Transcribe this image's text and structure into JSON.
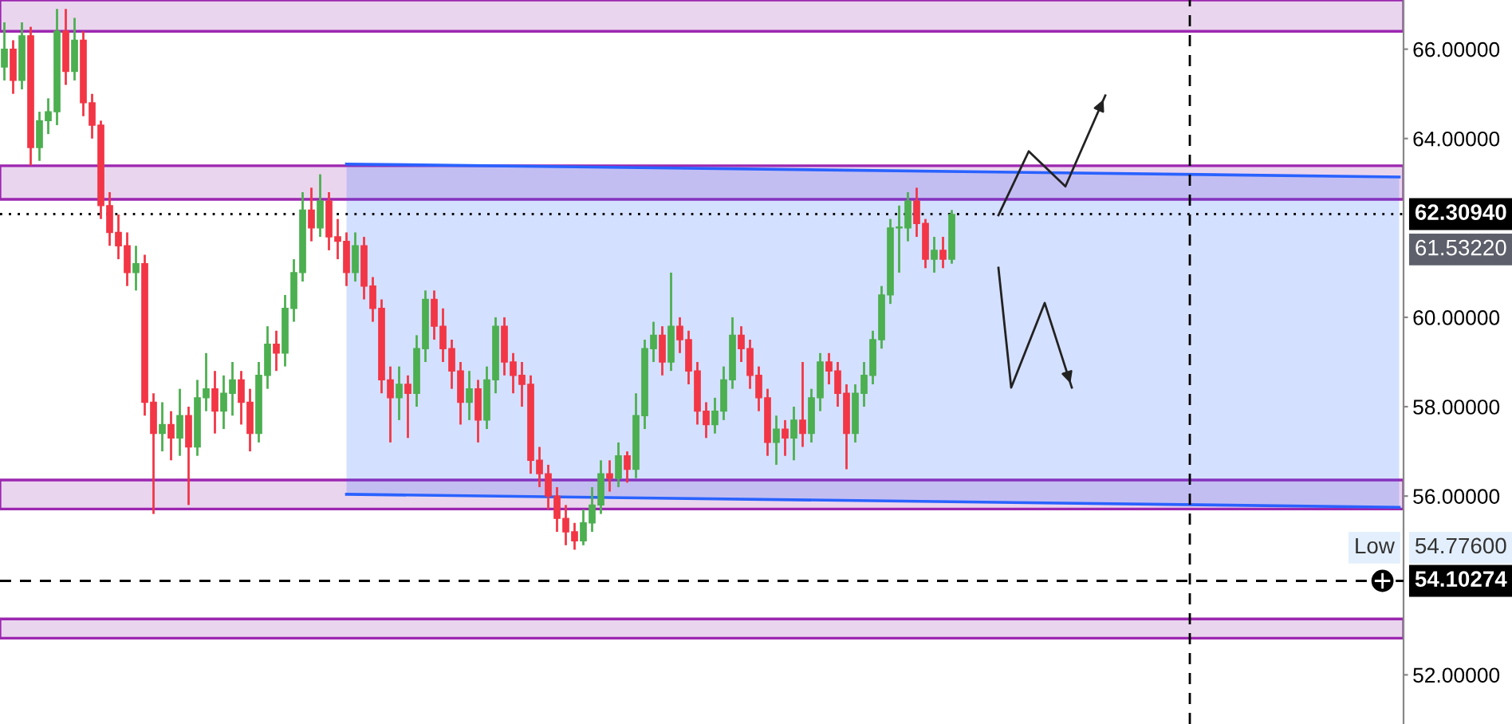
{
  "chart_data": {
    "type": "candlestick",
    "categories": [
      null,
      null,
      null,
      null,
      null,
      null,
      null,
      null,
      null,
      null,
      null,
      null,
      null,
      null,
      null,
      null,
      null,
      null,
      null,
      null,
      null,
      null,
      null,
      null,
      null,
      null,
      null,
      null,
      null,
      null,
      null,
      null,
      null,
      null,
      null,
      null,
      null,
      null,
      null,
      null,
      null,
      null,
      null,
      null,
      null,
      null,
      null,
      null,
      null,
      null,
      null,
      null,
      null,
      null,
      null,
      null,
      null,
      null,
      null,
      null,
      null,
      null,
      null,
      null,
      null,
      null,
      null,
      null,
      null,
      null,
      null,
      null,
      null,
      null,
      null,
      null,
      null,
      null,
      null,
      null,
      null,
      null,
      null,
      null,
      null,
      null,
      null,
      null,
      null,
      null,
      null,
      null,
      null,
      null,
      null,
      null,
      null,
      null,
      null,
      null,
      null,
      null,
      null,
      null,
      null,
      null,
      null,
      null,
      null,
      null,
      null,
      null,
      null,
      null,
      null,
      null,
      null,
      null,
      null,
      null,
      null,
      null,
      null,
      null,
      null,
      null,
      null,
      null,
      null,
      null,
      null,
      null,
      null,
      null,
      null,
      null,
      null,
      null,
      null,
      null,
      null,
      null,
      null,
      null,
      null,
      null,
      null,
      null,
      null,
      null,
      null,
      null,
      null,
      null,
      null,
      null,
      null,
      null,
      null,
      null
    ],
    "ohlc": [
      [
        65.6,
        66.6,
        65.3,
        66.0
      ],
      [
        66.0,
        66.2,
        65.0,
        65.3
      ],
      [
        65.3,
        66.6,
        65.1,
        66.3
      ],
      [
        66.3,
        66.5,
        63.4,
        63.8
      ],
      [
        63.8,
        64.6,
        63.5,
        64.4
      ],
      [
        64.4,
        64.9,
        64.1,
        64.6
      ],
      [
        64.6,
        66.9,
        64.3,
        66.4
      ],
      [
        66.4,
        66.9,
        65.2,
        65.5
      ],
      [
        65.5,
        66.7,
        65.3,
        66.2
      ],
      [
        66.2,
        66.4,
        64.5,
        64.8
      ],
      [
        64.8,
        65.0,
        64.0,
        64.3
      ],
      [
        64.3,
        64.4,
        62.2,
        62.5
      ],
      [
        62.5,
        62.8,
        61.6,
        61.9
      ],
      [
        61.9,
        62.3,
        61.3,
        61.6
      ],
      [
        61.6,
        61.9,
        60.7,
        61.0
      ],
      [
        61.0,
        61.6,
        60.6,
        61.2
      ],
      [
        61.2,
        61.4,
        57.8,
        58.1
      ],
      [
        58.1,
        58.3,
        55.6,
        57.4
      ],
      [
        57.4,
        58.1,
        57.0,
        57.6
      ],
      [
        57.6,
        57.9,
        56.8,
        57.3
      ],
      [
        57.3,
        58.4,
        56.9,
        57.8
      ],
      [
        57.8,
        58.0,
        55.8,
        57.1
      ],
      [
        57.1,
        58.6,
        56.9,
        58.2
      ],
      [
        58.2,
        59.2,
        57.9,
        58.4
      ],
      [
        58.4,
        58.8,
        57.4,
        57.9
      ],
      [
        57.9,
        58.7,
        57.5,
        58.3
      ],
      [
        58.3,
        59.0,
        57.8,
        58.6
      ],
      [
        58.6,
        58.8,
        57.6,
        58.1
      ],
      [
        58.1,
        58.4,
        57.0,
        57.4
      ],
      [
        57.4,
        59.0,
        57.2,
        58.7
      ],
      [
        58.7,
        59.8,
        58.4,
        59.4
      ],
      [
        59.4,
        59.7,
        58.8,
        59.2
      ],
      [
        59.2,
        60.5,
        58.9,
        60.2
      ],
      [
        60.2,
        61.3,
        59.9,
        61.0
      ],
      [
        61.0,
        62.8,
        60.8,
        62.4
      ],
      [
        62.4,
        62.9,
        61.7,
        62.0
      ],
      [
        62.0,
        63.2,
        61.8,
        62.6
      ],
      [
        62.6,
        62.8,
        61.5,
        61.8
      ],
      [
        61.8,
        62.2,
        61.3,
        61.7
      ],
      [
        61.7,
        61.9,
        60.7,
        61.0
      ],
      [
        61.0,
        61.9,
        60.8,
        61.6
      ],
      [
        61.6,
        61.8,
        60.4,
        60.7
      ],
      [
        60.7,
        60.9,
        59.9,
        60.2
      ],
      [
        60.2,
        60.4,
        58.3,
        58.6
      ],
      [
        58.6,
        58.9,
        57.2,
        58.2
      ],
      [
        58.2,
        58.9,
        57.7,
        58.5
      ],
      [
        58.5,
        58.7,
        57.3,
        58.3
      ],
      [
        58.3,
        59.6,
        58.0,
        59.3
      ],
      [
        59.3,
        60.6,
        59.0,
        60.4
      ],
      [
        60.4,
        60.6,
        59.5,
        59.8
      ],
      [
        59.8,
        60.2,
        59.0,
        59.3
      ],
      [
        59.3,
        59.5,
        58.4,
        58.8
      ],
      [
        58.8,
        59.0,
        57.6,
        58.1
      ],
      [
        58.1,
        58.8,
        57.7,
        58.4
      ],
      [
        58.4,
        58.6,
        57.2,
        57.7
      ],
      [
        57.7,
        58.9,
        57.5,
        58.6
      ],
      [
        58.6,
        60.0,
        58.3,
        59.8
      ],
      [
        59.8,
        60.0,
        58.7,
        59.0
      ],
      [
        59.0,
        59.2,
        58.3,
        58.7
      ],
      [
        58.7,
        59.0,
        58.0,
        58.5
      ],
      [
        58.5,
        58.7,
        56.5,
        56.8
      ],
      [
        56.8,
        57.1,
        56.2,
        56.5
      ],
      [
        56.5,
        56.7,
        55.7,
        56.0
      ],
      [
        56.0,
        56.2,
        55.2,
        55.5
      ],
      [
        55.5,
        55.8,
        54.9,
        55.2
      ],
      [
        55.2,
        55.4,
        54.8,
        55.0
      ],
      [
        55.0,
        55.7,
        54.9,
        55.4
      ],
      [
        55.4,
        56.2,
        55.2,
        55.8
      ],
      [
        55.8,
        56.8,
        55.6,
        56.5
      ],
      [
        56.5,
        56.8,
        56.1,
        56.4
      ],
      [
        56.4,
        57.2,
        56.2,
        56.9
      ],
      [
        56.9,
        57.0,
        56.3,
        56.6
      ],
      [
        56.6,
        58.3,
        56.4,
        57.8
      ],
      [
        57.8,
        59.5,
        57.5,
        59.3
      ],
      [
        59.3,
        59.9,
        59.0,
        59.6
      ],
      [
        59.6,
        59.8,
        58.7,
        59.0
      ],
      [
        59.0,
        61.0,
        58.8,
        59.8
      ],
      [
        59.8,
        60.0,
        59.2,
        59.5
      ],
      [
        59.5,
        59.7,
        58.5,
        58.8
      ],
      [
        58.8,
        59.0,
        57.6,
        57.9
      ],
      [
        57.9,
        58.1,
        57.3,
        57.6
      ],
      [
        57.6,
        58.2,
        57.4,
        57.9
      ],
      [
        57.9,
        58.9,
        57.7,
        58.6
      ],
      [
        58.6,
        60.0,
        58.4,
        59.6
      ],
      [
        59.6,
        59.8,
        59.0,
        59.3
      ],
      [
        59.3,
        59.5,
        58.4,
        58.7
      ],
      [
        58.7,
        58.9,
        57.9,
        58.2
      ],
      [
        58.2,
        58.4,
        56.9,
        57.2
      ],
      [
        57.2,
        57.8,
        56.7,
        57.5
      ],
      [
        57.5,
        57.7,
        56.9,
        57.3
      ],
      [
        57.3,
        58.0,
        56.8,
        57.7
      ],
      [
        57.7,
        59.0,
        57.1,
        57.4
      ],
      [
        57.4,
        58.4,
        57.2,
        58.2
      ],
      [
        58.2,
        59.2,
        57.9,
        59.0
      ],
      [
        59.0,
        59.2,
        58.5,
        58.8
      ],
      [
        58.8,
        59.0,
        58.0,
        58.3
      ],
      [
        58.3,
        58.5,
        56.6,
        57.4
      ],
      [
        57.4,
        58.5,
        57.2,
        58.3
      ],
      [
        58.3,
        59.0,
        58.0,
        58.7
      ],
      [
        58.7,
        59.7,
        58.5,
        59.5
      ],
      [
        59.5,
        60.7,
        59.3,
        60.5
      ],
      [
        60.5,
        62.2,
        60.3,
        62.0
      ],
      [
        62.0,
        62.5,
        61.0,
        62.0
      ],
      [
        62.0,
        62.8,
        61.7,
        62.6
      ],
      [
        62.6,
        62.9,
        61.8,
        62.1
      ],
      [
        62.1,
        62.2,
        61.1,
        61.3
      ],
      [
        61.3,
        61.8,
        61.0,
        61.5
      ],
      [
        61.5,
        61.8,
        61.1,
        61.3
      ],
      [
        61.3,
        62.4,
        61.2,
        62.3
      ],
      null,
      null,
      null,
      null,
      null,
      null,
      null,
      null,
      null,
      null,
      null,
      null,
      null,
      null,
      null,
      null,
      null,
      null,
      null,
      null,
      null,
      null,
      null,
      null,
      null,
      null,
      null,
      null,
      null,
      null,
      null,
      null,
      null,
      null,
      null,
      null,
      null,
      null,
      null,
      null,
      null,
      null,
      null,
      null,
      null,
      null,
      null,
      null,
      null,
      null,
      null
    ],
    "series": [
      {
        "type": "line",
        "color": "#2962ff",
        "values": [
          null,
          null,
          null,
          null,
          null,
          null,
          null,
          null,
          null,
          null,
          null,
          null,
          null,
          null,
          null,
          null,
          null,
          null,
          null,
          null,
          null,
          null,
          null,
          null,
          null,
          null,
          null,
          null,
          null,
          null,
          null,
          null,
          null,
          null,
          null,
          null,
          null,
          null,
          null,
          63.43,
          null,
          null,
          null,
          null,
          null,
          null,
          null,
          null,
          null,
          null,
          null,
          null,
          null,
          null,
          null,
          null,
          null,
          null,
          null,
          null,
          null,
          null,
          null,
          null,
          null,
          null,
          null,
          null,
          null,
          null,
          null,
          null,
          null,
          null,
          null,
          null,
          null,
          null,
          null,
          null,
          null,
          null,
          null,
          null,
          null,
          null,
          null,
          null,
          null,
          null,
          null,
          null,
          null,
          null,
          null,
          null,
          null,
          null,
          null,
          null,
          null,
          null,
          null,
          null,
          null,
          null,
          null,
          null,
          null,
          null,
          null,
          null,
          null,
          null,
          null,
          null,
          null,
          null,
          null,
          null,
          null,
          null,
          null,
          null,
          null,
          null,
          null,
          null,
          null,
          null,
          null,
          null,
          null,
          null,
          null,
          null,
          null,
          null,
          null,
          null,
          null,
          null,
          null,
          null,
          null,
          null,
          null,
          null,
          null,
          null,
          null,
          null,
          null,
          null,
          null,
          null,
          null,
          null,
          null,
          63.14
        ]
      },
      {
        "type": "line",
        "color": "#2962ff",
        "values": [
          null,
          null,
          null,
          null,
          null,
          null,
          null,
          null,
          null,
          null,
          null,
          null,
          null,
          null,
          null,
          null,
          null,
          null,
          null,
          null,
          null,
          null,
          null,
          null,
          null,
          null,
          null,
          null,
          null,
          null,
          null,
          null,
          null,
          null,
          null,
          null,
          null,
          null,
          null,
          56.04,
          null,
          null,
          null,
          null,
          null,
          null,
          null,
          null,
          null,
          null,
          null,
          null,
          null,
          null,
          null,
          null,
          null,
          null,
          null,
          null,
          null,
          null,
          null,
          null,
          null,
          null,
          null,
          null,
          null,
          null,
          null,
          null,
          null,
          null,
          null,
          null,
          null,
          null,
          null,
          null,
          null,
          null,
          null,
          null,
          null,
          null,
          null,
          null,
          null,
          null,
          null,
          null,
          null,
          null,
          null,
          null,
          null,
          null,
          null,
          null,
          null,
          null,
          null,
          null,
          null,
          null,
          null,
          null,
          null,
          null,
          null,
          null,
          null,
          null,
          null,
          null,
          null,
          null,
          null,
          null,
          null,
          null,
          null,
          null,
          null,
          null,
          null,
          null,
          null,
          null,
          null,
          null,
          null,
          null,
          null,
          null,
          null,
          null,
          null,
          null,
          null,
          null,
          null,
          null,
          null,
          null,
          null,
          null,
          null,
          null,
          null,
          null,
          null,
          null,
          null,
          null,
          null,
          null,
          null,
          55.75
        ]
      }
    ],
    "ylim": [
      50.9,
      67.1
    ],
    "yticks": [
      {
        "value": 52,
        "label": "52.00000"
      },
      {
        "value": 56,
        "label": "56.00000"
      },
      {
        "value": 58,
        "label": "58.00000"
      },
      {
        "value": 60,
        "label": "60.00000"
      },
      {
        "value": 64,
        "label": "64.00000"
      },
      {
        "value": 66,
        "label": "66.00000"
      }
    ],
    "bands": [
      {
        "axis": "y",
        "from": 66.4,
        "to": 67.1,
        "color": "#ead5ef"
      },
      {
        "axis": "y",
        "from": 62.64,
        "to": 63.39,
        "color": "#ead5ef"
      },
      {
        "axis": "y",
        "from": 55.71,
        "to": 56.36,
        "color": "#ead5ef"
      },
      {
        "axis": "y",
        "from": 52.82,
        "to": 53.25,
        "color": "#ead5ef"
      }
    ],
    "ref_lines": [
      {
        "axis": "y",
        "value": 62.3094,
        "label": "62.30940",
        "line_style": "dotted",
        "color": "#000000"
      },
      {
        "axis": "y",
        "value": 54.10274,
        "label": "54.10274",
        "line_style": "dashed",
        "color": "#000000"
      }
    ],
    "annotations": [
      "61.53220",
      "Low",
      "54.77600"
    ],
    "grid": false,
    "tick_labels": "y"
  }
}
